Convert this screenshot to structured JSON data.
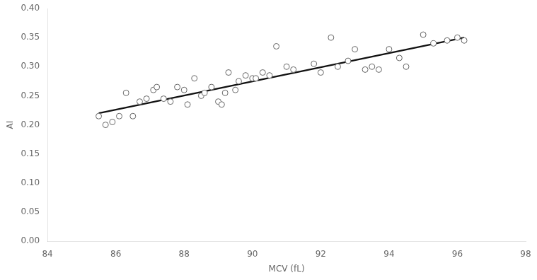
{
  "chart_data": {
    "type": "scatter",
    "xlabel": "MCV (fL)",
    "ylabel": "AI",
    "xlim": [
      84,
      98
    ],
    "ylim": [
      0.0,
      0.4
    ],
    "xticks": [
      84,
      86,
      88,
      90,
      92,
      94,
      96,
      98
    ],
    "yticks": [
      {
        "value": 0.0,
        "label": "0.00"
      },
      {
        "value": 0.05,
        "label": "0.05"
      },
      {
        "value": 0.1,
        "label": "0.10"
      },
      {
        "value": 0.15,
        "label": "0.15"
      },
      {
        "value": 0.2,
        "label": "0.20"
      },
      {
        "value": 0.25,
        "label": "0.25"
      },
      {
        "value": 0.3,
        "label": "0.30"
      },
      {
        "value": 0.35,
        "label": "0.35"
      },
      {
        "value": 0.4,
        "label": "0.40"
      }
    ],
    "grid": false,
    "series": [
      {
        "type": "line",
        "color": "#111111",
        "line_style": "solid",
        "x": [
          85.5,
          96.2
        ],
        "values": [
          0.22,
          0.35
        ]
      },
      {
        "type": "scatter",
        "color": "#666666",
        "marker": "open_circle",
        "x": [
          85.5,
          85.7,
          85.9,
          86.1,
          86.3,
          86.5,
          86.7,
          86.9,
          87.1,
          87.2,
          87.4,
          87.6,
          87.8,
          88.0,
          88.1,
          88.3,
          88.5,
          88.6,
          88.8,
          89.0,
          89.1,
          89.2,
          89.3,
          89.5,
          89.6,
          89.8,
          90.0,
          90.1,
          90.3,
          90.5,
          90.7,
          91.0,
          91.2,
          91.8,
          92.0,
          92.3,
          92.5,
          92.8,
          93.0,
          93.3,
          93.5,
          93.7,
          94.0,
          94.3,
          94.5,
          95.0,
          95.3,
          95.7,
          96.0,
          96.2
        ],
        "values": [
          0.215,
          0.2,
          0.205,
          0.215,
          0.255,
          0.215,
          0.24,
          0.245,
          0.26,
          0.265,
          0.245,
          0.24,
          0.265,
          0.26,
          0.235,
          0.28,
          0.25,
          0.255,
          0.265,
          0.24,
          0.235,
          0.255,
          0.29,
          0.26,
          0.275,
          0.285,
          0.28,
          0.28,
          0.29,
          0.285,
          0.335,
          0.3,
          0.295,
          0.305,
          0.29,
          0.35,
          0.3,
          0.31,
          0.33,
          0.295,
          0.3,
          0.295,
          0.33,
          0.315,
          0.3,
          0.355,
          0.34,
          0.345,
          0.35,
          0.345
        ]
      }
    ]
  }
}
